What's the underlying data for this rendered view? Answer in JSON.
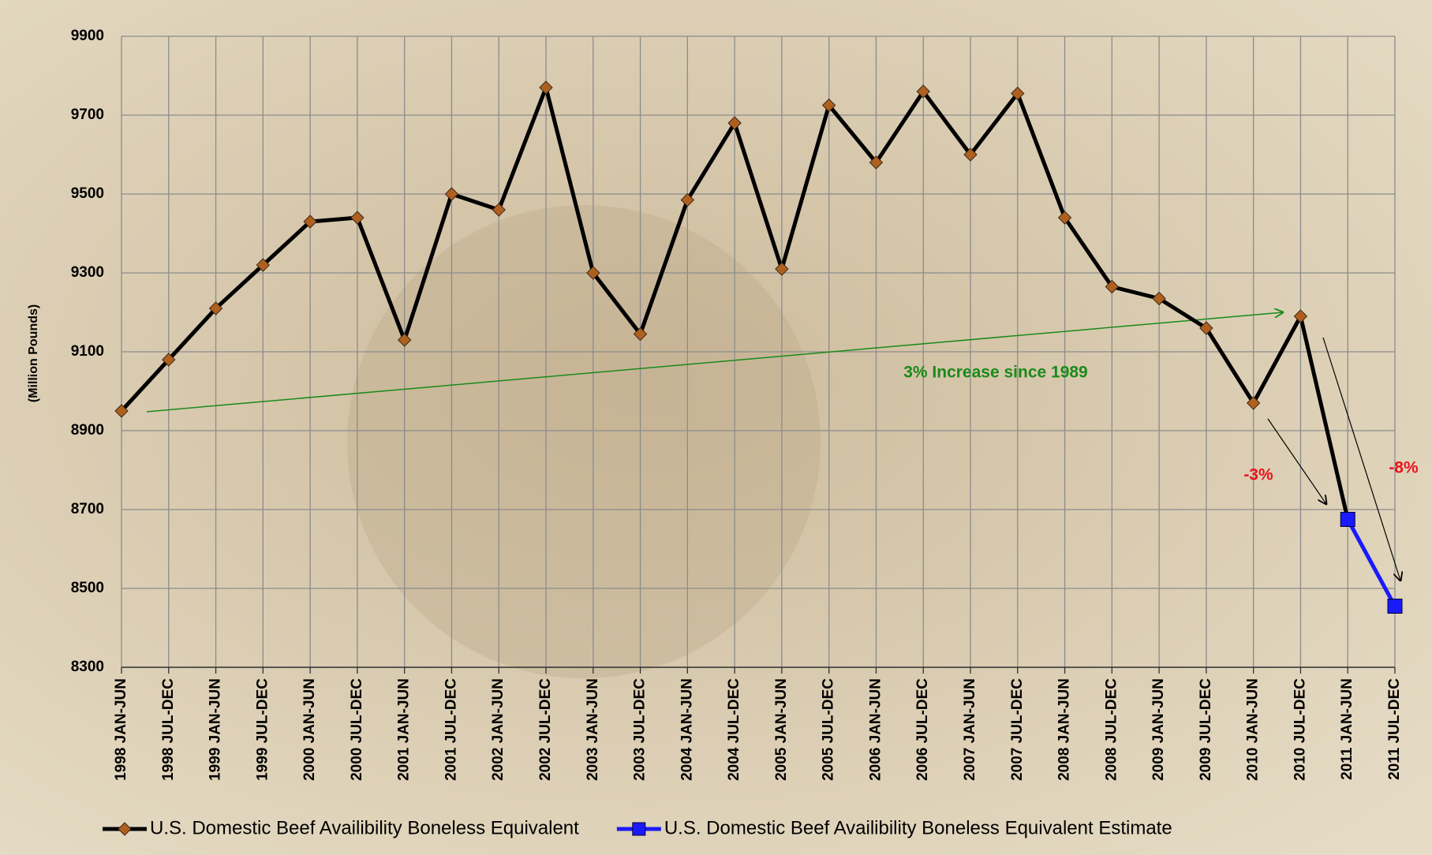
{
  "chart_data": {
    "type": "line",
    "y_label": "(Million Pounds)",
    "categories": [
      "1998 JAN-JUN",
      "1998 JUL-DEC",
      "1999 JAN-JUN",
      "1999 JUL-DEC",
      "2000 JAN-JUN",
      "2000 JUL-DEC",
      "2001 JAN-JUN",
      "2001 JUL-DEC",
      "2002 JAN-JUN",
      "2002 JUL-DEC",
      "2003 JAN-JUN",
      "2003 JUL-DEC",
      "2004 JAN-JUN",
      "2004 JUL-DEC",
      "2005 JAN-JUN",
      "2005 JUL-DEC",
      "2006 JAN-JUN",
      "2006 JUL-DEC",
      "2007 JAN-JUN",
      "2007 JUL-DEC",
      "2008 JAN-JUN",
      "2008 JUL-DEC",
      "2009 JAN-JUN",
      "2009 JUL-DEC",
      "2010 JAN-JUN",
      "2010 JUL-DEC",
      "2011 JAN-JUN",
      "2011 JUL-DEC"
    ],
    "series": [
      {
        "name": "U.S. Domestic Beef Availibility Boneless Equivalent",
        "color": "#000000",
        "marker": "diamond",
        "marker_color": "#b0601e",
        "values": [
          8950,
          9080,
          9210,
          9320,
          9430,
          9440,
          9130,
          9500,
          9460,
          9770,
          9300,
          9145,
          9485,
          9680,
          9310,
          9725,
          9580,
          9760,
          9600,
          9755,
          9440,
          9265,
          9235,
          9160,
          8970,
          9190,
          8675,
          null
        ]
      },
      {
        "name": "U.S. Domestic Beef Availibility Boneless Equivalent Estimate",
        "color": "#1a1aff",
        "marker": "square",
        "marker_color": "#1a1aff",
        "values": [
          null,
          null,
          null,
          null,
          null,
          null,
          null,
          null,
          null,
          null,
          null,
          null,
          null,
          null,
          null,
          null,
          null,
          null,
          null,
          null,
          null,
          null,
          null,
          null,
          null,
          null,
          8675,
          8455
        ]
      }
    ],
    "ylim": [
      8300,
      9900
    ],
    "yticks": [
      8300,
      8500,
      8700,
      8900,
      9100,
      9300,
      9500,
      9700,
      9900
    ],
    "grid": true,
    "legend": "bottom",
    "annotations": [
      "3% Increase since 1989",
      "-3%",
      "-8%"
    ]
  }
}
